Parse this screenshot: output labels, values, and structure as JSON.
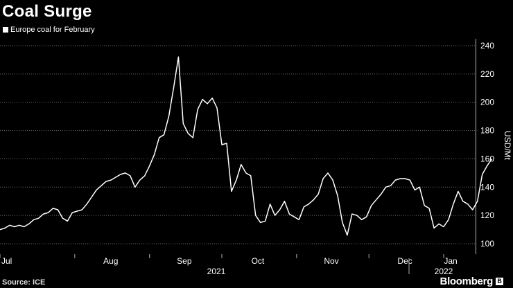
{
  "chart_data": {
    "type": "line",
    "title": "Coal Surge",
    "ylabel": "USD/Mt",
    "ylim": [
      100,
      240
    ],
    "yticks": [
      100,
      120,
      140,
      160,
      180,
      200,
      220,
      240
    ],
    "grid": "horizontal-dotted",
    "legend_position": "top-left",
    "x_month_labels": [
      "Jul",
      "Aug",
      "Sep",
      "Oct",
      "Nov",
      "Dec",
      "Jan"
    ],
    "x_year_labels": [
      "2021",
      "2022"
    ],
    "series": [
      {
        "name": "Europe coal for February",
        "color": "#ffffff",
        "x": [
          "2021-07-01",
          "2021-07-03",
          "2021-07-05",
          "2021-07-07",
          "2021-07-09",
          "2021-07-11",
          "2021-07-13",
          "2021-07-15",
          "2021-07-17",
          "2021-07-19",
          "2021-07-21",
          "2021-07-23",
          "2021-07-25",
          "2021-07-27",
          "2021-07-29",
          "2021-07-31",
          "2021-08-02",
          "2021-08-04",
          "2021-08-06",
          "2021-08-08",
          "2021-08-10",
          "2021-08-12",
          "2021-08-14",
          "2021-08-16",
          "2021-08-18",
          "2021-08-20",
          "2021-08-22",
          "2021-08-24",
          "2021-08-26",
          "2021-08-28",
          "2021-08-30",
          "2021-09-01",
          "2021-09-03",
          "2021-09-05",
          "2021-09-07",
          "2021-09-09",
          "2021-09-11",
          "2021-09-13",
          "2021-09-15",
          "2021-09-17",
          "2021-09-19",
          "2021-09-21",
          "2021-09-23",
          "2021-09-25",
          "2021-09-27",
          "2021-09-29",
          "2021-10-01",
          "2021-10-03",
          "2021-10-05",
          "2021-10-07",
          "2021-10-09",
          "2021-10-11",
          "2021-10-13",
          "2021-10-15",
          "2021-10-17",
          "2021-10-19",
          "2021-10-21",
          "2021-10-23",
          "2021-10-25",
          "2021-10-27",
          "2021-10-29",
          "2021-10-31",
          "2021-11-02",
          "2021-11-04",
          "2021-11-06",
          "2021-11-08",
          "2021-11-10",
          "2021-11-12",
          "2021-11-14",
          "2021-11-16",
          "2021-11-18",
          "2021-11-20",
          "2021-11-22",
          "2021-11-24",
          "2021-11-26",
          "2021-11-28",
          "2021-11-30",
          "2021-12-02",
          "2021-12-04",
          "2021-12-06",
          "2021-12-08",
          "2021-12-10",
          "2021-12-12",
          "2021-12-14",
          "2021-12-16",
          "2021-12-18",
          "2021-12-20",
          "2021-12-22",
          "2021-12-24",
          "2021-12-26",
          "2021-12-28",
          "2021-12-30",
          "2022-01-01",
          "2022-01-03",
          "2022-01-05",
          "2022-01-07",
          "2022-01-09",
          "2022-01-11",
          "2022-01-13",
          "2022-01-15",
          "2022-01-17",
          "2022-01-19",
          "2022-01-21"
        ],
        "values": [
          110,
          111,
          113,
          112,
          113,
          112,
          114,
          117,
          118,
          121,
          122,
          125,
          124,
          118,
          116,
          122,
          123,
          124,
          128,
          133,
          138,
          141,
          144,
          145,
          147,
          149,
          150,
          148,
          140,
          145,
          148,
          155,
          163,
          175,
          177,
          190,
          210,
          232,
          185,
          178,
          175,
          195,
          202,
          199,
          203,
          196,
          170,
          171,
          137,
          145,
          156,
          150,
          148,
          120,
          115,
          116,
          128,
          120,
          124,
          130,
          121,
          119,
          117,
          126,
          128,
          131,
          135,
          146,
          150,
          145,
          134,
          115,
          106,
          121,
          120,
          117,
          119,
          127,
          131,
          135,
          140,
          141,
          145,
          146,
          146,
          145,
          138,
          140,
          127,
          125,
          111,
          114,
          112,
          117,
          128,
          137,
          130,
          128,
          124,
          130,
          149,
          155,
          160
        ]
      }
    ]
  },
  "source_text": "Source: ICE",
  "brand_text": "Bloomberg",
  "brand_mark": "B"
}
